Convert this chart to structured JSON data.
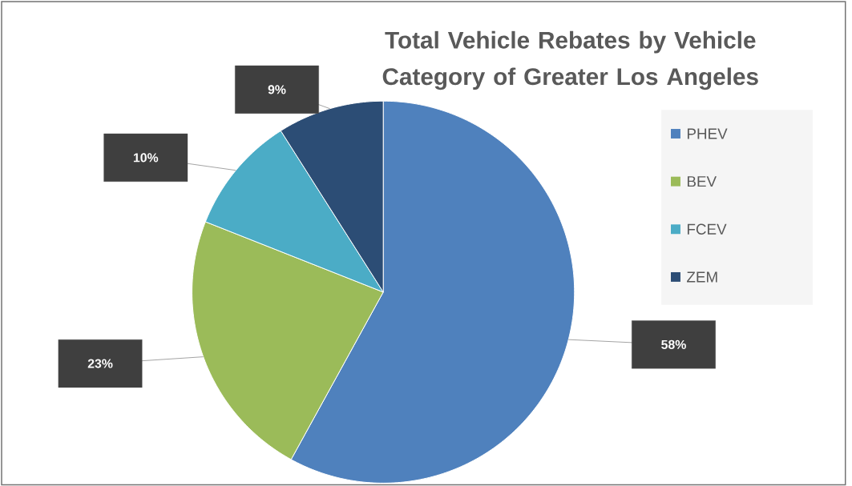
{
  "chart_data": {
    "type": "pie",
    "title": "Total Vehicle Rebates by Vehicle Category of Greater Los Angeles",
    "categories": [
      "PHEV",
      "BEV",
      "FCEV",
      "ZEM"
    ],
    "values": [
      58,
      23,
      10,
      9
    ],
    "colors": [
      "#4f81bd",
      "#9bbb59",
      "#4bacc6",
      "#2c4d75"
    ],
    "value_labels": [
      "58%",
      "23%",
      "10%",
      "9%"
    ],
    "legend": "right"
  }
}
